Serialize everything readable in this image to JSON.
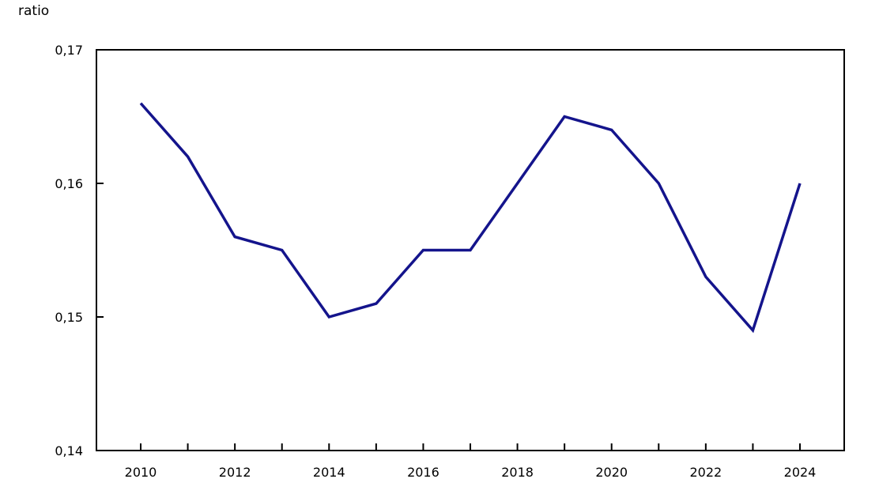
{
  "chart_data": {
    "type": "line",
    "title": "",
    "xlabel": "",
    "ylabel": "ratio",
    "x": [
      2010,
      2011,
      2012,
      2013,
      2014,
      2015,
      2016,
      2017,
      2018,
      2019,
      2020,
      2021,
      2022,
      2023,
      2024
    ],
    "series": [
      {
        "name": "ratio",
        "values": [
          0.166,
          0.162,
          0.156,
          0.155,
          0.15,
          0.151,
          0.155,
          0.155,
          0.16,
          0.165,
          0.164,
          0.16,
          0.153,
          0.149,
          0.16
        ]
      }
    ],
    "ylim": [
      0.14,
      0.17
    ],
    "y_ticks": [
      {
        "value": 0.17,
        "label": "0,17"
      },
      {
        "value": 0.16,
        "label": "0,16"
      },
      {
        "value": 0.15,
        "label": "0,15"
      },
      {
        "value": 0.14,
        "label": "0,14"
      }
    ],
    "x_ticks": [
      2010,
      2011,
      2012,
      2013,
      2014,
      2015,
      2016,
      2017,
      2018,
      2019,
      2020,
      2021,
      2022,
      2023,
      2024
    ],
    "x_tick_labels": [
      {
        "value": 2010,
        "label": "2010"
      },
      {
        "value": 2012,
        "label": "2012"
      },
      {
        "value": 2014,
        "label": "2014"
      },
      {
        "value": 2016,
        "label": "2016"
      },
      {
        "value": 2018,
        "label": "2018"
      },
      {
        "value": 2020,
        "label": "2020"
      },
      {
        "value": 2022,
        "label": "2022"
      },
      {
        "value": 2024,
        "label": "2024"
      }
    ],
    "decimal_separator": ",",
    "grid": false,
    "legend_position": "none",
    "colors": {
      "line": "#14148c",
      "axis": "#000000",
      "text": "#000000",
      "background": "#ffffff"
    }
  }
}
